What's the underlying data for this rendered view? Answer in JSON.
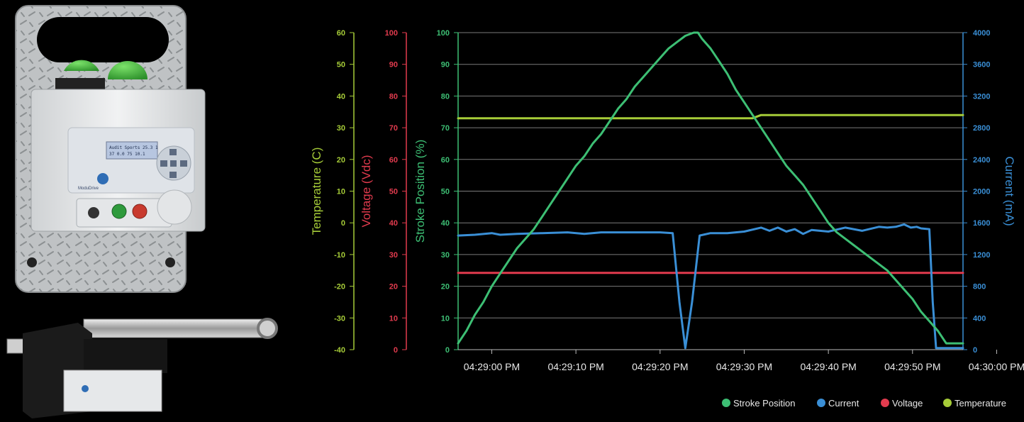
{
  "device": {
    "lcd_line1": "Audit Sports 25.3 1",
    "lcd_line2": "37 0.0  75  10.1",
    "brand": "ModuDrive"
  },
  "chart_data": {
    "type": "line",
    "x_ticks": [
      "04:29:00 PM",
      "04:29:10 PM",
      "04:29:20 PM",
      "04:29:30 PM",
      "04:29:40 PM",
      "04:29:50 PM",
      "04:30:00 PM"
    ],
    "x_unit": "seconds after 04:28:56 PM",
    "axes": {
      "temperature": {
        "label": "Temperature (C)",
        "color": "#a6cc38",
        "range": [
          -40,
          60
        ],
        "ticks": [
          "-40",
          "-30",
          "-20",
          "-10",
          "0",
          "10",
          "20",
          "30",
          "40",
          "50",
          "60"
        ]
      },
      "voltage": {
        "label": "Voltage (Vdc)",
        "color": "#e23b4e",
        "range": [
          0,
          100
        ],
        "ticks": [
          "0",
          "10",
          "20",
          "30",
          "40",
          "50",
          "60",
          "70",
          "80",
          "90",
          "100"
        ]
      },
      "stroke": {
        "label": "Stroke Position (%)",
        "color": "#3dbf74",
        "range": [
          0,
          100
        ],
        "ticks": [
          "0",
          "10",
          "20",
          "30",
          "40",
          "50",
          "60",
          "70",
          "80",
          "90",
          "100"
        ]
      },
      "current": {
        "label": "Current (mA)",
        "color": "#3a8fd6",
        "range": [
          0,
          4000
        ],
        "ticks": [
          "0",
          "400",
          "800",
          "1200",
          "1600",
          "2000",
          "2400",
          "2800",
          "3200",
          "3600",
          "4000"
        ]
      }
    },
    "grid": true,
    "legend_position": "bottom-right",
    "legend": [
      "Stroke Position",
      "Current",
      "Voltage",
      "Temperature"
    ],
    "series": [
      {
        "name": "Stroke Position",
        "axis": "stroke",
        "color": "#3dbf74",
        "x": [
          0,
          1,
          2,
          3,
          4,
          5,
          6,
          7,
          8,
          9,
          10,
          11,
          12,
          13,
          14,
          15,
          16,
          17,
          18,
          19,
          20,
          21,
          22,
          23,
          24,
          25,
          26,
          27,
          28,
          28.5,
          29,
          30,
          31,
          32,
          33,
          34,
          35,
          36,
          37,
          38,
          39,
          40,
          41,
          42,
          43,
          44,
          45,
          46,
          47,
          48,
          49,
          50,
          51,
          52,
          53,
          54,
          55,
          56,
          57,
          57.5,
          58,
          60
        ],
        "values": [
          2,
          6,
          11,
          15,
          20,
          24,
          28,
          32,
          35,
          38,
          42,
          46,
          50,
          54,
          58,
          61,
          65,
          68,
          72,
          76,
          79,
          83,
          86,
          89,
          92,
          95,
          97,
          99,
          100,
          100,
          98,
          95,
          91,
          87,
          82,
          78,
          74,
          70,
          66,
          62,
          58,
          55,
          52,
          48,
          44,
          40,
          37,
          35,
          33,
          31,
          29,
          27,
          25,
          22,
          19,
          16,
          12,
          9,
          6,
          4,
          2,
          2
        ]
      },
      {
        "name": "Current",
        "axis": "current",
        "color": "#3a8fd6",
        "x": [
          0,
          2,
          4,
          5,
          7,
          10,
          13,
          15,
          17,
          19,
          21,
          24,
          25.5,
          26.3,
          27,
          27.8,
          28.7,
          30,
          32,
          34,
          36,
          37,
          38,
          39,
          40,
          41,
          42,
          43,
          44,
          46,
          48,
          50,
          51,
          52,
          53,
          53.8,
          54.5,
          55,
          56,
          56.4,
          56.8,
          57.2,
          58,
          60
        ],
        "values": [
          1440,
          1450,
          1470,
          1450,
          1460,
          1470,
          1480,
          1460,
          1480,
          1480,
          1480,
          1480,
          1470,
          600,
          20,
          600,
          1440,
          1470,
          1470,
          1490,
          1540,
          1500,
          1540,
          1490,
          1520,
          1460,
          1510,
          1500,
          1490,
          1540,
          1500,
          1550,
          1540,
          1550,
          1580,
          1540,
          1550,
          1530,
          1520,
          600,
          20,
          20,
          20,
          20
        ]
      },
      {
        "name": "Voltage",
        "axis": "voltage",
        "color": "#e23b4e",
        "x": [
          0,
          60
        ],
        "values": [
          24.2,
          24.2
        ]
      },
      {
        "name": "Temperature",
        "axis": "temperature",
        "color": "#a6cc38",
        "x": [
          0,
          35,
          36,
          60
        ],
        "values": [
          33,
          33,
          34,
          34
        ]
      }
    ]
  }
}
